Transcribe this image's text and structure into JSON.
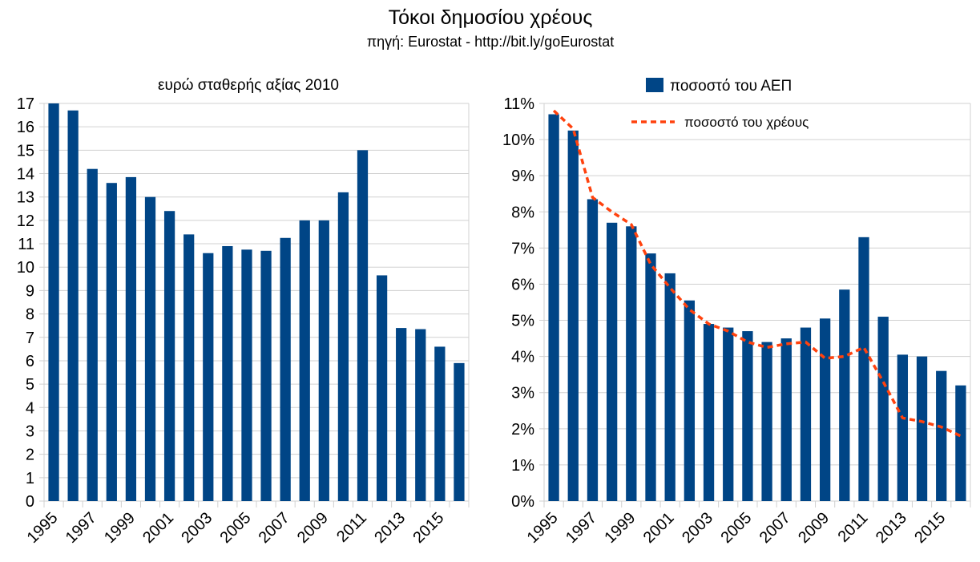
{
  "title": "Τόκοι δημοσίου χρέους",
  "subtitle": "πηγή: Eurostat - http://bit.ly/goEurostat",
  "colors": {
    "bar": "#004586",
    "line": "#ff420e",
    "grid": "#d0d0d0"
  },
  "chart_data": [
    {
      "type": "bar",
      "title": "ευρώ σταθερής αξίας 2010",
      "categories": [
        "1995",
        "1996",
        "1997",
        "1998",
        "1999",
        "2000",
        "2001",
        "2002",
        "2003",
        "2004",
        "2005",
        "2006",
        "2007",
        "2008",
        "2009",
        "2010",
        "2011",
        "2012",
        "2013",
        "2014",
        "2015",
        "2016"
      ],
      "x_tick_labels": [
        "1995",
        "1997",
        "1999",
        "2001",
        "2003",
        "2005",
        "2007",
        "2009",
        "2011",
        "2013",
        "2015"
      ],
      "values": [
        17.0,
        16.7,
        14.2,
        13.6,
        13.85,
        13.0,
        12.4,
        11.4,
        10.6,
        10.9,
        10.75,
        10.7,
        11.25,
        12.0,
        12.0,
        13.2,
        15.0,
        9.65,
        7.4,
        7.35,
        6.6,
        5.9
      ],
      "ylim": [
        0,
        17
      ],
      "y_ticks": [
        "0",
        "1",
        "2",
        "3",
        "4",
        "5",
        "6",
        "7",
        "8",
        "9",
        "10",
        "11",
        "12",
        "13",
        "14",
        "15",
        "16",
        "17"
      ],
      "grid": true
    },
    {
      "type": "bar+line",
      "categories": [
        "1995",
        "1996",
        "1997",
        "1998",
        "1999",
        "2000",
        "2001",
        "2002",
        "2003",
        "2004",
        "2005",
        "2006",
        "2007",
        "2008",
        "2009",
        "2010",
        "2011",
        "2012",
        "2013",
        "2014",
        "2015",
        "2016"
      ],
      "x_tick_labels": [
        "1995",
        "1997",
        "1999",
        "2001",
        "2003",
        "2005",
        "2007",
        "2009",
        "2011",
        "2013",
        "2015"
      ],
      "series": [
        {
          "name": "ποσοστό του ΑΕΠ",
          "type": "bar",
          "values": [
            10.7,
            10.25,
            8.35,
            7.7,
            7.6,
            6.85,
            6.3,
            5.55,
            4.9,
            4.8,
            4.7,
            4.4,
            4.5,
            4.8,
            5.05,
            5.85,
            7.3,
            5.1,
            4.05,
            4.0,
            3.6,
            3.2
          ]
        },
        {
          "name": "ποσοστό του χρέους",
          "type": "line",
          "style": "dashed",
          "values": [
            10.8,
            10.3,
            8.4,
            8.0,
            7.65,
            6.55,
            5.9,
            5.3,
            4.9,
            4.7,
            4.4,
            4.25,
            4.35,
            4.4,
            3.95,
            4.0,
            4.25,
            3.3,
            2.3,
            2.2,
            2.05,
            1.8
          ]
        }
      ],
      "ylim": [
        0,
        11
      ],
      "y_ticks": [
        "0%",
        "1%",
        "2%",
        "3%",
        "4%",
        "5%",
        "6%",
        "7%",
        "8%",
        "9%",
        "10%",
        "11%"
      ],
      "grid": true,
      "legend": "top"
    }
  ]
}
